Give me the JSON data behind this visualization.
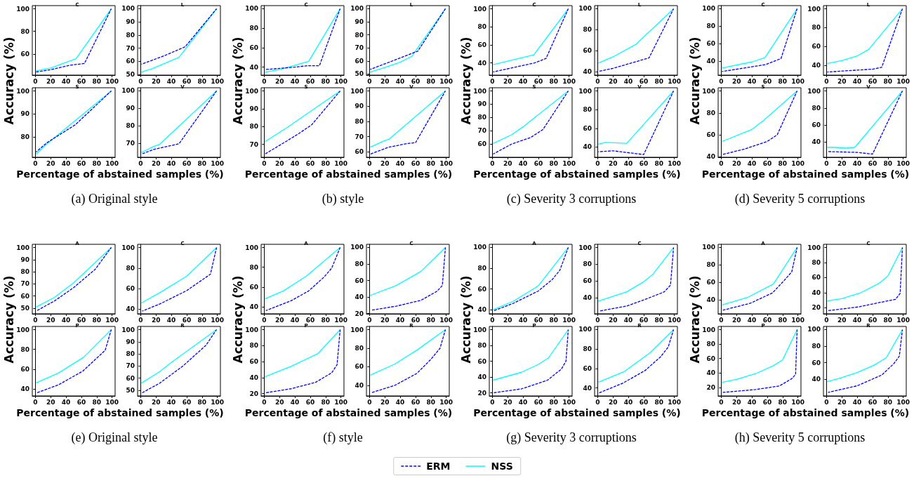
{
  "chart_data": [
    {
      "type": "line",
      "title": "C",
      "ylabel": "Accuracy (%)",
      "legend": "bottom",
      "marker": "none",
      "xlim": [
        -4,
        104
      ],
      "xticks": [
        0,
        20,
        40,
        60,
        80,
        100
      ],
      "ylim": [
        41.2,
        102.8
      ],
      "yticks": [
        60,
        80,
        100
      ],
      "series": [
        {
          "name": "ERM",
          "color": "#0000ff",
          "line_style": "dashed",
          "x": [
            1,
            20,
            45,
            64,
            99
          ],
          "values": [
            44,
            46,
            50,
            51.5,
            100
          ]
        },
        {
          "name": "NSS",
          "color": "#00ffff",
          "line_style": "solid",
          "x": [
            1,
            20,
            53,
            99
          ],
          "values": [
            45,
            47.5,
            55.8,
            100
          ]
        }
      ]
    },
    {
      "type": "line",
      "title": "L",
      "marker": "none",
      "xlim": [
        -4,
        104
      ],
      "xticks": [
        0,
        20,
        40,
        60,
        80,
        100
      ],
      "ylim": [
        49.4,
        102.4
      ],
      "yticks": [
        50,
        60,
        70,
        80,
        90,
        100
      ],
      "series": [
        {
          "color": "#0000ff",
          "line_style": "dashed",
          "x": [
            1,
            30,
            58,
            99
          ],
          "values": [
            57.7,
            64,
            71,
            100
          ]
        },
        {
          "color": "#00ffff",
          "line_style": "solid",
          "x": [
            1,
            15,
            50,
            99
          ],
          "values": [
            51.8,
            54.3,
            63,
            100
          ]
        }
      ]
    },
    {
      "type": "line",
      "title": "S",
      "xlabel": "Percentage of abstained samples (%)",
      "annotations": [
        "(a)  Original style"
      ],
      "marker": "none",
      "xlim": [
        -4,
        104
      ],
      "xticks": [
        0,
        20,
        40,
        60,
        80,
        100
      ],
      "ylim": [
        71.2,
        101.4
      ],
      "yticks": [
        80,
        90,
        100
      ],
      "series": [
        {
          "color": "#0000ff",
          "line_style": "dashed",
          "x": [
            1,
            15,
            52,
            99
          ],
          "values": [
            73.5,
            77.5,
            85.3,
            100
          ]
        },
        {
          "color": "#00ffff",
          "line_style": "solid",
          "x": [
            1,
            15,
            99
          ],
          "values": [
            72.6,
            77,
            100
          ]
        }
      ]
    },
    {
      "type": "line",
      "title": "V",
      "marker": "none",
      "xlim": [
        -4,
        104
      ],
      "xticks": [
        0,
        20,
        40,
        60,
        80,
        100
      ],
      "ylim": [
        62,
        101.8
      ],
      "yticks": [
        70,
        80,
        90,
        100
      ],
      "series": [
        {
          "color": "#0000ff",
          "line_style": "dashed",
          "x": [
            1,
            17,
            50,
            99
          ],
          "values": [
            63.8,
            66.5,
            69.7,
            100
          ]
        },
        {
          "color": "#00ffff",
          "line_style": "solid",
          "x": [
            1,
            16,
            25,
            99
          ],
          "values": [
            64.7,
            68,
            69.5,
            100
          ]
        }
      ]
    },
    {
      "type": "line",
      "title": "C",
      "ylabel": "Accuracy (%)",
      "marker": "none",
      "xlim": [
        -4,
        104
      ],
      "xticks": [
        0,
        20,
        40,
        60,
        80,
        100
      ],
      "ylim": [
        31.8,
        103.2
      ],
      "yticks": [
        40,
        60,
        80,
        100
      ],
      "series": [
        {
          "color": "#0000ff",
          "line_style": "dashed",
          "x": [
            1,
            40,
            57,
            72,
            99
          ],
          "values": [
            37.5,
            40,
            41.5,
            41.5,
            100
          ]
        },
        {
          "color": "#00ffff",
          "line_style": "solid",
          "x": [
            1,
            20,
            58,
            99
          ],
          "values": [
            35,
            37.5,
            46,
            100
          ]
        }
      ]
    },
    {
      "type": "line",
      "title": "L",
      "marker": "none",
      "xlim": [
        -4,
        104
      ],
      "xticks": [
        0,
        20,
        40,
        60,
        80,
        100
      ],
      "ylim": [
        49.1,
        102.4
      ],
      "yticks": [
        50,
        60,
        70,
        80,
        90,
        100
      ],
      "series": [
        {
          "color": "#0000ff",
          "line_style": "dashed",
          "x": [
            1,
            30,
            63,
            99
          ],
          "values": [
            53.5,
            60,
            67.5,
            100
          ]
        },
        {
          "color": "#00ffff",
          "line_style": "solid",
          "x": [
            1,
            20,
            40,
            55,
            99
          ],
          "values": [
            51.5,
            55,
            59,
            63.5,
            100
          ]
        }
      ]
    },
    {
      "type": "line",
      "title": "S",
      "xlabel": "Percentage of abstained samples (%)",
      "annotations": [
        "(b)  style"
      ],
      "marker": "none",
      "xlim": [
        -4,
        104
      ],
      "xticks": [
        0,
        20,
        40,
        60,
        80,
        100
      ],
      "ylim": [
        62.7,
        101.8
      ],
      "yticks": [
        70,
        80,
        90,
        100
      ],
      "series": [
        {
          "color": "#0000ff",
          "line_style": "dashed",
          "x": [
            1,
            30,
            45,
            62,
            99
          ],
          "values": [
            64.5,
            72,
            76,
            81,
            100
          ]
        },
        {
          "color": "#00ffff",
          "line_style": "solid",
          "x": [
            1,
            30,
            99
          ],
          "values": [
            71.5,
            79.5,
            100
          ]
        }
      ]
    },
    {
      "type": "line",
      "title": "V",
      "marker": "none",
      "xlim": [
        -4,
        104
      ],
      "xticks": [
        0,
        20,
        40,
        60,
        80,
        100
      ],
      "ylim": [
        56.4,
        102.1
      ],
      "yticks": [
        60,
        70,
        80,
        90,
        100
      ],
      "series": [
        {
          "color": "#0000ff",
          "line_style": "dashed",
          "x": [
            1,
            25,
            50,
            60,
            99
          ],
          "values": [
            58.5,
            63,
            65.5,
            66,
            100
          ]
        },
        {
          "color": "#00ffff",
          "line_style": "solid",
          "x": [
            1,
            18,
            26,
            99
          ],
          "values": [
            63,
            67,
            68.5,
            100
          ]
        }
      ]
    },
    {
      "type": "line",
      "title": "C",
      "ylabel": "Accuracy (%)",
      "marker": "none",
      "xlim": [
        -4,
        104
      ],
      "xticks": [
        0,
        20,
        40,
        60,
        80,
        100
      ],
      "ylim": [
        26.5,
        103.5
      ],
      "yticks": [
        40,
        60,
        80,
        100
      ],
      "series": [
        {
          "color": "#0000ff",
          "line_style": "dashed",
          "x": [
            1,
            55,
            70,
            99
          ],
          "values": [
            30,
            40,
            45,
            100
          ]
        },
        {
          "color": "#00ffff",
          "line_style": "solid",
          "x": [
            1,
            54,
            99
          ],
          "values": [
            38,
            49,
            100
          ]
        }
      ]
    },
    {
      "type": "line",
      "title": "L",
      "marker": "none",
      "xlim": [
        -4,
        104
      ],
      "xticks": [
        0,
        20,
        40,
        60,
        80,
        100
      ],
      "ylim": [
        36.5,
        103
      ],
      "yticks": [
        40,
        60,
        80,
        100
      ],
      "series": [
        {
          "color": "#0000ff",
          "line_style": "dashed",
          "x": [
            1,
            20,
            67,
            99
          ],
          "values": [
            40,
            43,
            53,
            100
          ]
        },
        {
          "color": "#00ffff",
          "line_style": "solid",
          "x": [
            1,
            20,
            50,
            99
          ],
          "values": [
            48,
            54,
            66,
            100
          ]
        }
      ]
    },
    {
      "type": "line",
      "title": "S",
      "xlabel": "Percentage of abstained samples (%)",
      "annotations": [
        "(c)  Severity 3 corruptions"
      ],
      "marker": "none",
      "xlim": [
        -4,
        104
      ],
      "xticks": [
        0,
        20,
        40,
        60,
        80,
        100
      ],
      "ylim": [
        50.1,
        102.4
      ],
      "yticks": [
        60,
        70,
        80,
        90,
        100
      ],
      "series": [
        {
          "color": "#0000ff",
          "line_style": "dashed",
          "x": [
            1,
            25,
            50,
            66,
            99
          ],
          "values": [
            52.5,
            60,
            65,
            71,
            100
          ]
        },
        {
          "color": "#00ffff",
          "line_style": "solid",
          "x": [
            1,
            25,
            40,
            99
          ],
          "values": [
            60.5,
            67,
            73,
            100
          ]
        }
      ]
    },
    {
      "type": "line",
      "title": "V",
      "marker": "none",
      "xlim": [
        -4,
        104
      ],
      "xticks": [
        0,
        20,
        40,
        60,
        80,
        100
      ],
      "ylim": [
        29.1,
        103.4
      ],
      "yticks": [
        40,
        60,
        80,
        100
      ],
      "series": [
        {
          "color": "#0000ff",
          "line_style": "dashed",
          "x": [
            1,
            20,
            60,
            99
          ],
          "values": [
            35,
            36,
            32,
            100
          ]
        },
        {
          "color": "#00ffff",
          "line_style": "solid",
          "x": [
            1,
            10,
            38,
            99
          ],
          "values": [
            43,
            45,
            44,
            100
          ]
        }
      ]
    },
    {
      "type": "line",
      "title": "C",
      "ylabel": "Accuracy (%)",
      "marker": "none",
      "xlim": [
        -4,
        104
      ],
      "xticks": [
        0,
        20,
        40,
        60,
        80,
        100
      ],
      "ylim": [
        23.9,
        103.6
      ],
      "yticks": [
        40,
        60,
        80,
        100
      ],
      "series": [
        {
          "color": "#0000ff",
          "line_style": "dashed",
          "x": [
            1,
            58,
            78,
            99
          ],
          "values": [
            28,
            36,
            43,
            100
          ]
        },
        {
          "color": "#00ffff",
          "line_style": "solid",
          "x": [
            1,
            40,
            57,
            99
          ],
          "values": [
            32,
            39,
            44,
            100
          ]
        }
      ]
    },
    {
      "type": "line",
      "title": "L",
      "marker": "none",
      "xlim": [
        -4,
        104
      ],
      "xticks": [
        0,
        20,
        40,
        60,
        80,
        100
      ],
      "ylim": [
        29.7,
        103.4
      ],
      "yticks": [
        40,
        60,
        80,
        100
      ],
      "series": [
        {
          "color": "#0000ff",
          "line_style": "dashed",
          "x": [
            1,
            20,
            60,
            72,
            99
          ],
          "values": [
            33,
            34,
            36,
            38,
            100
          ]
        },
        {
          "color": "#00ffff",
          "line_style": "solid",
          "x": [
            1,
            20,
            40,
            55,
            99
          ],
          "values": [
            42,
            45,
            50,
            57,
            100
          ]
        }
      ]
    },
    {
      "type": "line",
      "title": "S",
      "xlabel": "Percentage of abstained samples (%)",
      "annotations": [
        "(d)  Severity 5 corruptions"
      ],
      "marker": "none",
      "xlim": [
        -4,
        104
      ],
      "xticks": [
        0,
        20,
        40,
        60,
        80,
        100
      ],
      "ylim": [
        39.6,
        102.9
      ],
      "yticks": [
        40,
        60,
        80,
        100
      ],
      "series": [
        {
          "color": "#0000ff",
          "line_style": "dashed",
          "x": [
            1,
            30,
            60,
            73,
            99
          ],
          "values": [
            42,
            47,
            54,
            60,
            100
          ]
        },
        {
          "color": "#00ffff",
          "line_style": "solid",
          "x": [
            1,
            40,
            55,
            99
          ],
          "values": [
            54,
            65,
            73,
            100
          ]
        }
      ]
    },
    {
      "type": "line",
      "title": "V",
      "marker": "none",
      "xlim": [
        -4,
        104
      ],
      "xticks": [
        0,
        20,
        40,
        60,
        80,
        100
      ],
      "ylim": [
        22.3,
        103.7
      ],
      "yticks": [
        40,
        60,
        80,
        100
      ],
      "series": [
        {
          "color": "#0000ff",
          "line_style": "dashed",
          "x": [
            1,
            40,
            60,
            99
          ],
          "values": [
            29,
            28,
            26,
            100
          ]
        },
        {
          "color": "#00ffff",
          "line_style": "solid",
          "x": [
            1,
            10,
            25,
            37,
            99
          ],
          "values": [
            34,
            34,
            33,
            34,
            100
          ]
        }
      ]
    },
    {
      "type": "line",
      "title": "A",
      "ylabel": "Accuracy (%)",
      "marker": "none",
      "xlim": [
        -4,
        104
      ],
      "xticks": [
        0,
        20,
        40,
        60,
        80,
        100
      ],
      "ylim": [
        45.4,
        102.6
      ],
      "yticks": [
        50,
        60,
        70,
        80,
        90,
        100
      ],
      "series": [
        {
          "color": "#0000ff",
          "line_style": "dashed",
          "x": [
            2,
            25,
            50,
            78,
            99
          ],
          "values": [
            48,
            56,
            67,
            82,
            100
          ]
        },
        {
          "color": "#00ffff",
          "line_style": "solid",
          "x": [
            1,
            25,
            50,
            99
          ],
          "values": [
            51,
            59,
            71,
            100
          ]
        }
      ]
    },
    {
      "type": "line",
      "title": "C",
      "marker": "none",
      "xlim": [
        -4,
        104
      ],
      "xticks": [
        0,
        20,
        40,
        60,
        80,
        100
      ],
      "ylim": [
        35.4,
        103.1
      ],
      "yticks": [
        40,
        60,
        80,
        100
      ],
      "series": [
        {
          "color": "#0000ff",
          "line_style": "dashed",
          "x": [
            2,
            25,
            60,
            91,
            99
          ],
          "values": [
            38,
            45,
            58,
            74,
            100
          ]
        },
        {
          "color": "#00ffff",
          "line_style": "solid",
          "x": [
            1,
            25,
            60,
            99
          ],
          "values": [
            46,
            56,
            72,
            100
          ]
        }
      ]
    },
    {
      "type": "line",
      "title": "P",
      "xlabel": "Percentage of abstained samples (%)",
      "annotations": [
        "(e)  Original style"
      ],
      "marker": "none",
      "xlim": [
        -4,
        104
      ],
      "xticks": [
        0,
        20,
        40,
        60,
        80,
        100
      ],
      "ylim": [
        32.8,
        103.2
      ],
      "yticks": [
        40,
        60,
        80,
        100
      ],
      "series": [
        {
          "color": "#0000ff",
          "line_style": "dashed",
          "x": [
            2,
            30,
            62,
            91,
            99
          ],
          "values": [
            36,
            44,
            58,
            79,
            100
          ]
        },
        {
          "color": "#00ffff",
          "line_style": "solid",
          "x": [
            1,
            30,
            63,
            99
          ],
          "values": [
            46,
            56,
            72,
            100
          ]
        }
      ]
    },
    {
      "type": "line",
      "title": "R",
      "marker": "none",
      "xlim": [
        -4,
        104
      ],
      "xticks": [
        0,
        20,
        40,
        60,
        80,
        100
      ],
      "ylim": [
        45.4,
        102.6
      ],
      "yticks": [
        50,
        60,
        70,
        80,
        90,
        100
      ],
      "series": [
        {
          "color": "#0000ff",
          "line_style": "dashed",
          "x": [
            2,
            25,
            55,
            85,
            99
          ],
          "values": [
            48,
            56,
            70,
            87,
            100
          ]
        },
        {
          "color": "#00ffff",
          "line_style": "solid",
          "x": [
            1,
            25,
            40,
            99
          ],
          "values": [
            56,
            65.5,
            73,
            100
          ]
        }
      ]
    },
    {
      "type": "line",
      "title": "A",
      "ylabel": "Accuracy (%)",
      "marker": "none",
      "xlim": [
        -4,
        104
      ],
      "xticks": [
        0,
        20,
        40,
        60,
        80,
        100
      ],
      "ylim": [
        32.8,
        103.2
      ],
      "yticks": [
        40,
        60,
        80,
        100
      ],
      "series": [
        {
          "color": "#0000ff",
          "line_style": "dashed",
          "x": [
            2,
            35,
            58,
            78,
            88,
            99
          ],
          "values": [
            36,
            46,
            56,
            70,
            79,
            100
          ]
        },
        {
          "color": "#00ffff",
          "line_style": "solid",
          "x": [
            1,
            25,
            55,
            99
          ],
          "values": [
            48,
            56,
            71,
            100
          ]
        }
      ]
    },
    {
      "type": "line",
      "title": "C",
      "marker": "none",
      "xlim": [
        -4,
        104
      ],
      "xticks": [
        0,
        20,
        40,
        60,
        80,
        100
      ],
      "ylim": [
        19.7,
        103.8
      ],
      "yticks": [
        20,
        40,
        60,
        80,
        100
      ],
      "series": [
        {
          "color": "#0000ff",
          "line_style": "dashed",
          "x": [
            2,
            35,
            67,
            88,
            95,
            99
          ],
          "values": [
            24,
            29,
            36,
            47,
            54,
            100
          ]
        },
        {
          "color": "#00ffff",
          "line_style": "solid",
          "x": [
            1,
            35,
            67,
            99
          ],
          "values": [
            42,
            54,
            71,
            100
          ]
        }
      ]
    },
    {
      "type": "line",
      "title": "P",
      "xlabel": "Percentage of abstained samples (%)",
      "annotations": [
        "(f)  style"
      ],
      "marker": "none",
      "xlim": [
        -4,
        104
      ],
      "xticks": [
        0,
        20,
        40,
        60,
        80,
        100
      ],
      "ylim": [
        17,
        104
      ],
      "yticks": [
        20,
        40,
        60,
        80,
        100
      ],
      "series": [
        {
          "color": "#0000ff",
          "line_style": "dashed",
          "x": [
            2,
            35,
            67,
            88,
            95,
            99
          ],
          "values": [
            21,
            26,
            34,
            46,
            56,
            100
          ]
        },
        {
          "color": "#00ffff",
          "line_style": "solid",
          "x": [
            1,
            35,
            70,
            99
          ],
          "values": [
            41,
            54,
            70,
            100
          ]
        }
      ]
    },
    {
      "type": "line",
      "title": "R",
      "marker": "none",
      "xlim": [
        -4,
        104
      ],
      "xticks": [
        0,
        20,
        40,
        60,
        80,
        100
      ],
      "ylim": [
        28.6,
        103.4
      ],
      "yticks": [
        40,
        60,
        80,
        100
      ],
      "series": [
        {
          "color": "#0000ff",
          "line_style": "dashed",
          "x": [
            2,
            33,
            62,
            80,
            92,
            99
          ],
          "values": [
            32,
            40,
            53,
            68,
            80,
            100
          ]
        },
        {
          "color": "#00ffff",
          "line_style": "solid",
          "x": [
            1,
            33,
            62,
            99
          ],
          "values": [
            51,
            63,
            78,
            100
          ]
        }
      ]
    },
    {
      "type": "line",
      "title": "A",
      "ylabel": "Accuracy (%)",
      "marker": "none",
      "xlim": [
        -4,
        104
      ],
      "xticks": [
        0,
        20,
        40,
        60,
        80,
        100
      ],
      "ylim": [
        36,
        103
      ],
      "yticks": [
        40,
        60,
        80,
        100
      ],
      "series": [
        {
          "color": "#0000ff",
          "line_style": "dashed",
          "x": [
            2,
            27,
            60,
            78,
            88,
            99
          ],
          "values": [
            39,
            46,
            58,
            69,
            78,
            100
          ]
        },
        {
          "color": "#00ffff",
          "line_style": "solid",
          "x": [
            1,
            27,
            60,
            99
          ],
          "values": [
            40,
            48,
            63,
            100
          ]
        }
      ]
    },
    {
      "type": "line",
      "title": "C",
      "marker": "none",
      "xlim": [
        -4,
        104
      ],
      "xticks": [
        0,
        20,
        40,
        60,
        80,
        100
      ],
      "ylim": [
        20.7,
        103.8
      ],
      "yticks": [
        40,
        60,
        80,
        100
      ],
      "series": [
        {
          "color": "#0000ff",
          "line_style": "dashed",
          "x": [
            2,
            38,
            62,
            87,
            95,
            99
          ],
          "values": [
            24,
            30,
            38,
            47,
            55,
            100
          ]
        },
        {
          "color": "#00ffff",
          "line_style": "solid",
          "x": [
            1,
            38,
            60,
            72,
            99
          ],
          "values": [
            36,
            47,
            59,
            68,
            100
          ]
        }
      ]
    },
    {
      "type": "line",
      "title": "P",
      "xlabel": "Percentage of abstained samples (%)",
      "annotations": [
        "(g)  Severity 3 corruptions"
      ],
      "marker": "none",
      "xlim": [
        -4,
        104
      ],
      "xticks": [
        0,
        20,
        40,
        60,
        80,
        100
      ],
      "ylim": [
        16,
        104
      ],
      "yticks": [
        20,
        40,
        60,
        80,
        100
      ],
      "series": [
        {
          "color": "#0000ff",
          "line_style": "dashed",
          "x": [
            2,
            38,
            72,
            90,
            96,
            99
          ],
          "values": [
            20,
            25,
            36,
            50,
            60,
            100
          ]
        },
        {
          "color": "#00ffff",
          "line_style": "solid",
          "x": [
            1,
            38,
            60,
            73,
            99
          ],
          "values": [
            36,
            46,
            56,
            64,
            100
          ]
        }
      ]
    },
    {
      "type": "line",
      "title": "R",
      "marker": "none",
      "xlim": [
        -4,
        104
      ],
      "xticks": [
        0,
        20,
        40,
        60,
        80,
        100
      ],
      "ylim": [
        31.8,
        103.2
      ],
      "yticks": [
        40,
        60,
        80,
        100
      ],
      "series": [
        {
          "color": "#0000ff",
          "line_style": "dashed",
          "x": [
            2,
            33,
            62,
            82,
            92,
            99
          ],
          "values": [
            35,
            45,
            58,
            72,
            82,
            100
          ]
        },
        {
          "color": "#00ffff",
          "line_style": "solid",
          "x": [
            1,
            35,
            68,
            99
          ],
          "values": [
            46,
            57,
            76,
            100
          ]
        }
      ]
    },
    {
      "type": "line",
      "title": "A",
      "ylabel": "Accuracy (%)",
      "marker": "none",
      "xlim": [
        -4,
        104
      ],
      "xticks": [
        0,
        20,
        40,
        60,
        80,
        100
      ],
      "ylim": [
        23.9,
        103.6
      ],
      "yticks": [
        40,
        60,
        80,
        100
      ],
      "series": [
        {
          "color": "#0000ff",
          "line_style": "dashed",
          "x": [
            2,
            38,
            67,
            82,
            92,
            99
          ],
          "values": [
            28,
            36,
            48,
            62,
            72,
            100
          ]
        },
        {
          "color": "#00ffff",
          "line_style": "solid",
          "x": [
            1,
            35,
            68,
            99
          ],
          "values": [
            34,
            43,
            58,
            100
          ]
        }
      ]
    },
    {
      "type": "line",
      "title": "C",
      "marker": "none",
      "xlim": [
        -4,
        104
      ],
      "xticks": [
        0,
        20,
        40,
        60,
        80,
        100
      ],
      "ylim": [
        11.8,
        104.2
      ],
      "yticks": [
        20,
        40,
        60,
        80,
        100
      ],
      "series": [
        {
          "color": "#0000ff",
          "line_style": "dashed",
          "x": [
            2,
            42,
            70,
            90,
            96,
            99
          ],
          "values": [
            16,
            21,
            27,
            31,
            39,
            100
          ]
        },
        {
          "color": "#00ffff",
          "line_style": "solid",
          "x": [
            1,
            20,
            45,
            68,
            80,
            99
          ],
          "values": [
            29,
            32,
            40,
            52,
            62,
            100
          ]
        }
      ]
    },
    {
      "type": "line",
      "title": "P",
      "xlabel": "Percentage of abstained samples (%)",
      "annotations": [
        "(h)  Severity 5 corruptions"
      ],
      "marker": "none",
      "xlim": [
        -4,
        104
      ],
      "xticks": [
        0,
        20,
        40,
        60,
        80,
        100
      ],
      "ylim": [
        8.1,
        104.4
      ],
      "yticks": [
        20,
        40,
        60,
        80,
        100
      ],
      "series": [
        {
          "color": "#0000ff",
          "line_style": "dashed",
          "x": [
            2,
            45,
            76,
            92,
            97,
            99
          ],
          "values": [
            13,
            17,
            22,
            32,
            38,
            100
          ]
        },
        {
          "color": "#00ffff",
          "line_style": "solid",
          "x": [
            1,
            20,
            45,
            68,
            80,
            99
          ],
          "values": [
            27,
            31,
            39,
            50,
            58,
            100
          ]
        }
      ]
    },
    {
      "type": "line",
      "title": "R",
      "marker": "none",
      "xlim": [
        -4,
        104
      ],
      "xticks": [
        0,
        20,
        40,
        60,
        80,
        100
      ],
      "ylim": [
        19.7,
        103.8
      ],
      "yticks": [
        40,
        60,
        80,
        100
      ],
      "series": [
        {
          "color": "#0000ff",
          "line_style": "dashed",
          "x": [
            2,
            40,
            72,
            88,
            95,
            99
          ],
          "values": [
            24,
            32,
            45,
            59,
            68,
            100
          ]
        },
        {
          "color": "#00ffff",
          "line_style": "solid",
          "x": [
            1,
            17,
            40,
            62,
            78,
            99
          ],
          "values": [
            37,
            41,
            48,
            57,
            66,
            100
          ]
        }
      ]
    }
  ]
}
